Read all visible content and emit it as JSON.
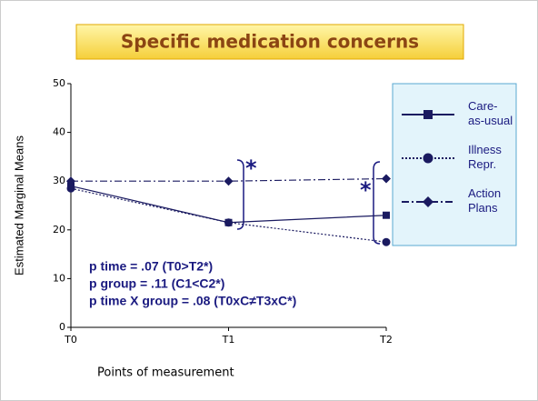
{
  "chart_data": {
    "type": "line",
    "title": "Specific medication concerns",
    "y_label": "Estimated Marginal Means",
    "x_label": "Points of measurement",
    "categories": [
      "T0",
      "T1",
      "T2"
    ],
    "series": [
      {
        "name": "Care-as-usual",
        "color": "#1a1a60",
        "marker": "square",
        "dash": "solid",
        "values": [
          29,
          21.5,
          23
        ]
      },
      {
        "name": "Illness Repr.",
        "color": "#1a1a60",
        "marker": "circle",
        "dash": "dotted",
        "values": [
          28.5,
          21.5,
          17.5
        ]
      },
      {
        "name": "Action Plans",
        "color": "#1a1a60",
        "marker": "diamond",
        "dash": "dashdot",
        "values": [
          30,
          30,
          30.5
        ]
      }
    ],
    "ylim": [
      0,
      50
    ],
    "yticks": [
      0,
      10,
      20,
      30,
      40,
      50
    ],
    "significance": [
      "*",
      "*"
    ],
    "annotations": [
      "p time = .07 (T0>T2*)",
      "p group = .11 (C1<C2*)",
      "p time X group = .08 (T0xC≠T3xC*)"
    ]
  }
}
